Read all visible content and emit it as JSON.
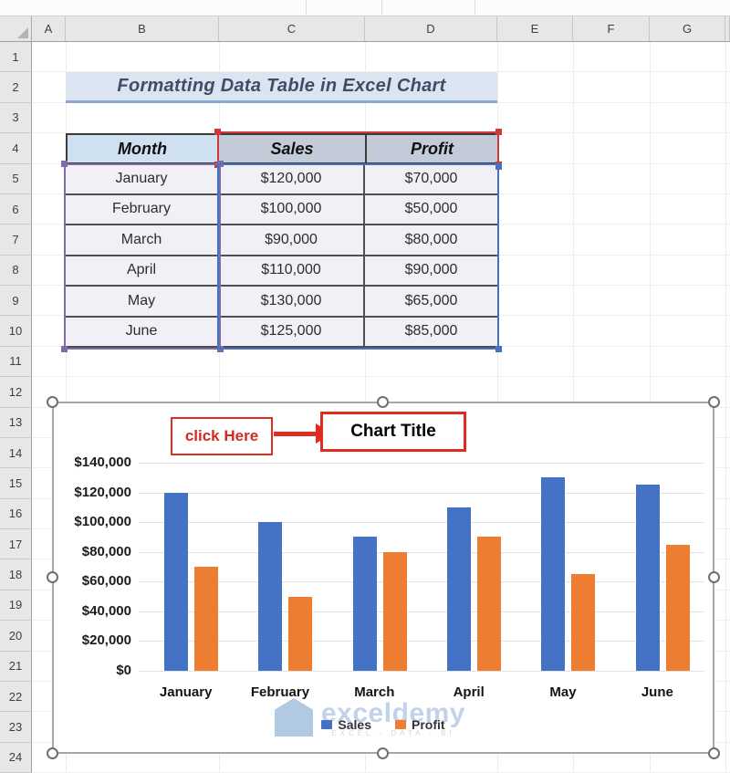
{
  "spreadsheet": {
    "column_headers": [
      "A",
      "B",
      "C",
      "D",
      "E",
      "F",
      "G"
    ],
    "row_headers": [
      "1",
      "2",
      "3",
      "4",
      "5",
      "6",
      "7",
      "8",
      "9",
      "10",
      "11",
      "12",
      "13",
      "14",
      "15",
      "16",
      "17",
      "18",
      "19",
      "20",
      "21",
      "22",
      "23",
      "24"
    ]
  },
  "banner": {
    "text": "Formatting Data Table in Excel Chart"
  },
  "data_table": {
    "columns": [
      "Month",
      "Sales",
      "Profit"
    ],
    "rows": [
      [
        "January",
        "$120,000",
        "$70,000"
      ],
      [
        "February",
        "$100,000",
        "$50,000"
      ],
      [
        "March",
        "$90,000",
        "$80,000"
      ],
      [
        "April",
        "$110,000",
        "$90,000"
      ],
      [
        "May",
        "$130,000",
        "$65,000"
      ],
      [
        "June",
        "$125,000",
        "$85,000"
      ]
    ]
  },
  "chart": {
    "click_here_label": "click Here",
    "title_label": "Chart Title",
    "watermark_name": "exceldemy",
    "watermark_tagline": "EXCEL - DATA - BI"
  },
  "chart_data": {
    "type": "bar",
    "categories": [
      "January",
      "February",
      "March",
      "April",
      "May",
      "June"
    ],
    "series": [
      {
        "name": "Sales",
        "color": "#4472c4",
        "values": [
          120000,
          100000,
          90000,
          110000,
          130000,
          125000
        ]
      },
      {
        "name": "Profit",
        "color": "#ed7d31",
        "values": [
          70000,
          50000,
          80000,
          90000,
          65000,
          85000
        ]
      }
    ],
    "title": "Chart Title",
    "xlabel": "",
    "ylabel": "",
    "ylim": [
      0,
      140000
    ],
    "ytick_step": 20000,
    "ytick_labels": [
      "$140,000",
      "$120,000",
      "$100,000",
      "$80,000",
      "$60,000",
      "$40,000",
      "$20,000",
      "$0"
    ],
    "legend_position": "bottom",
    "grid": true
  },
  "colors": {
    "sales_bar": "#4472c4",
    "profit_bar": "#ed7d31",
    "annotation_red": "#e02b20",
    "banner_bg": "#dbe5f1",
    "banner_text": "#3e4e66",
    "month_header_bg": "#cfe0f1",
    "value_header_bg": "#c3cbd9",
    "table_body_bg": "#f2f0f7",
    "selection_red": "#cf3a36",
    "selection_purple": "#7e6ba8",
    "selection_blue": "#4472c4",
    "watermark_blue": "#bccee9"
  }
}
